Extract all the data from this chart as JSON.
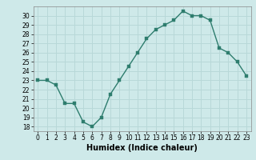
{
  "x": [
    0,
    1,
    2,
    3,
    4,
    5,
    6,
    7,
    8,
    9,
    10,
    11,
    12,
    13,
    14,
    15,
    16,
    17,
    18,
    19,
    20,
    21,
    22,
    23
  ],
  "y": [
    23,
    23,
    22.5,
    20.5,
    20.5,
    18.5,
    18,
    19,
    21.5,
    23,
    24.5,
    26,
    27.5,
    28.5,
    29,
    29.5,
    30.5,
    30,
    30,
    29.5,
    26.5,
    26,
    25,
    23.5
  ],
  "line_color": "#2e7d6e",
  "marker": "s",
  "markersize": 2.5,
  "linewidth": 1.0,
  "xlabel": "Humidex (Indice chaleur)",
  "xlabel_fontsize": 7,
  "ylim": [
    17.5,
    31
  ],
  "yticks": [
    18,
    19,
    20,
    21,
    22,
    23,
    24,
    25,
    26,
    27,
    28,
    29,
    30
  ],
  "xticks": [
    0,
    1,
    2,
    3,
    4,
    5,
    6,
    7,
    8,
    9,
    10,
    11,
    12,
    13,
    14,
    15,
    16,
    17,
    18,
    19,
    20,
    21,
    22,
    23
  ],
  "xtick_labels": [
    "0",
    "1",
    "2",
    "3",
    "4",
    "5",
    "6",
    "7",
    "8",
    "9",
    "10",
    "11",
    "12",
    "13",
    "14",
    "15",
    "16",
    "17",
    "18",
    "19",
    "20",
    "21",
    "22",
    "23"
  ],
  "background_color": "#cee9e9",
  "grid_color": "#b8d8d8",
  "tick_fontsize": 5.5
}
